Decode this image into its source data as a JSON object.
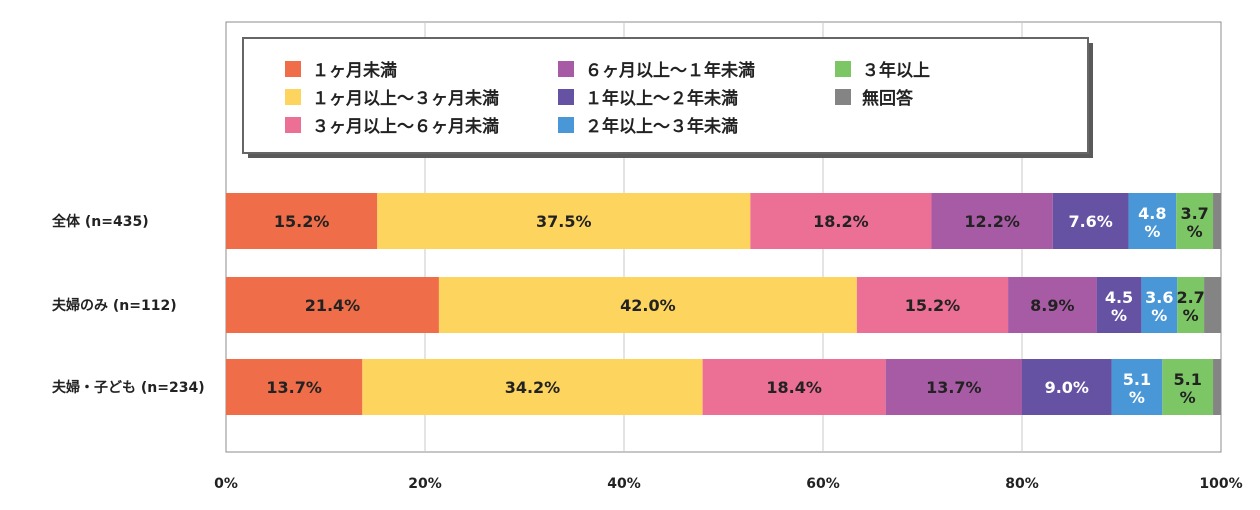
{
  "chart_data": {
    "type": "bar",
    "orientation": "horizontal",
    "stacked": true,
    "title": "",
    "xlabel": "",
    "ylabel": "",
    "xlim": [
      0,
      100
    ],
    "x_ticks": [
      "0%",
      "20%",
      "40%",
      "60%",
      "80%",
      "100%"
    ],
    "grid": "vertical",
    "legend_position": "top",
    "categories": [
      "全体 (n=435)",
      "夫婦のみ (n=112)",
      "夫婦・子ども (n=234)"
    ],
    "series": [
      {
        "name": "１ヶ月未満",
        "color": "#ef6e49",
        "values": [
          15.2,
          21.4,
          13.7
        ],
        "labels": [
          "15.2%",
          "21.4%",
          "13.7%"
        ]
      },
      {
        "name": "１ヶ月以上〜３ヶ月未満",
        "color": "#fdd55e",
        "values": [
          37.5,
          42.0,
          34.2
        ],
        "labels": [
          "37.5%",
          "42.0%",
          "34.2%"
        ]
      },
      {
        "name": "３ヶ月以上〜６ヶ月未満",
        "color": "#ec6f95",
        "values": [
          18.2,
          15.2,
          18.4
        ],
        "labels": [
          "18.2%",
          "15.2%",
          "18.4%"
        ]
      },
      {
        "name": "６ヶ月以上〜１年未満",
        "color": "#a85ba5",
        "values": [
          12.2,
          8.9,
          13.7
        ],
        "labels": [
          "12.2%",
          "8.9%",
          "13.7%"
        ]
      },
      {
        "name": "１年以上〜２年未満",
        "color": "#6552a3",
        "values": [
          7.6,
          4.5,
          9.0
        ],
        "labels": [
          "7.6%",
          "4.5\n%",
          "9.0%"
        ]
      },
      {
        "name": "２年以上〜３年未満",
        "color": "#4a97d8",
        "values": [
          4.8,
          3.6,
          5.1
        ],
        "labels": [
          "4.8\n%",
          "3.6\n%",
          "5.1\n%"
        ]
      },
      {
        "name": "３年以上",
        "color": "#7cc665",
        "values": [
          3.7,
          2.7,
          5.1
        ],
        "labels": [
          "3.7\n%",
          "2.7\n%",
          "5.1\n%"
        ]
      },
      {
        "name": "無回答",
        "color": "#848484",
        "values": [
          0.8,
          1.7,
          0.8
        ],
        "labels": [
          "",
          "",
          ""
        ]
      }
    ]
  }
}
